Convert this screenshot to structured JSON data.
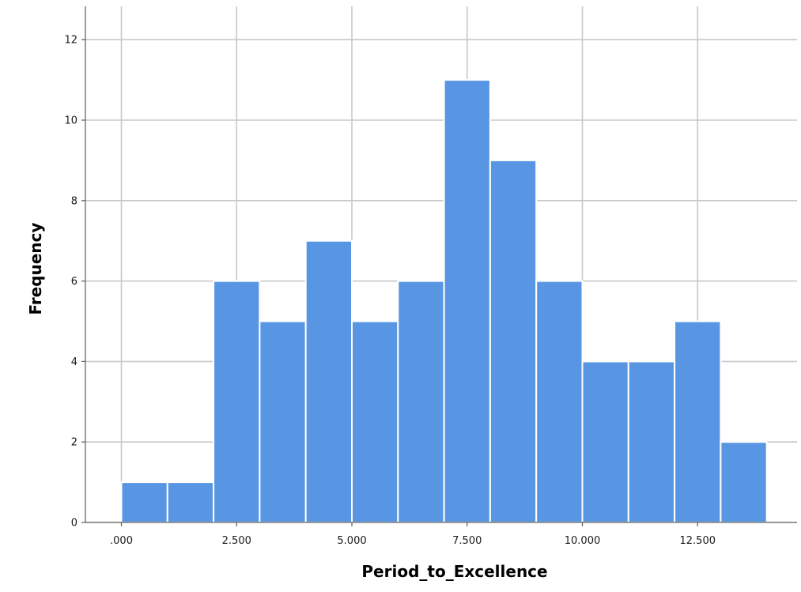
{
  "chart_data": {
    "type": "bar",
    "title": "",
    "xlabel": "Period_to_Excellence",
    "ylabel": "Frequency",
    "xlim": [
      0,
      14
    ],
    "ylim": [
      0,
      12.5
    ],
    "bin_width": 1,
    "bins": [
      {
        "start": 0,
        "end": 1,
        "count": 1
      },
      {
        "start": 1,
        "end": 2,
        "count": 1
      },
      {
        "start": 2,
        "end": 3,
        "count": 6
      },
      {
        "start": 3,
        "end": 4,
        "count": 5
      },
      {
        "start": 4,
        "end": 5,
        "count": 7
      },
      {
        "start": 5,
        "end": 6,
        "count": 5
      },
      {
        "start": 6,
        "end": 7,
        "count": 6
      },
      {
        "start": 7,
        "end": 8,
        "count": 11
      },
      {
        "start": 8,
        "end": 9,
        "count": 9
      },
      {
        "start": 9,
        "end": 10,
        "count": 6
      },
      {
        "start": 10,
        "end": 11,
        "count": 4
      },
      {
        "start": 11,
        "end": 12,
        "count": 4
      },
      {
        "start": 12,
        "end": 13,
        "count": 5
      },
      {
        "start": 13,
        "end": 14,
        "count": 2
      }
    ],
    "x_ticks": [
      {
        "value": 0,
        "label": ".000"
      },
      {
        "value": 2.5,
        "label": "2.500"
      },
      {
        "value": 5,
        "label": "5.000"
      },
      {
        "value": 7.5,
        "label": "7.500"
      },
      {
        "value": 10,
        "label": "10.000"
      },
      {
        "value": 12.5,
        "label": "12.500"
      }
    ],
    "y_ticks": [
      {
        "value": 0,
        "label": "0"
      },
      {
        "value": 2,
        "label": "2"
      },
      {
        "value": 4,
        "label": "4"
      },
      {
        "value": 6,
        "label": "6"
      },
      {
        "value": 8,
        "label": "8"
      },
      {
        "value": 10,
        "label": "10"
      },
      {
        "value": 12,
        "label": "12"
      }
    ],
    "grid": true,
    "bar_color": "#5896e4",
    "grid_color": "#c8c8c8"
  }
}
